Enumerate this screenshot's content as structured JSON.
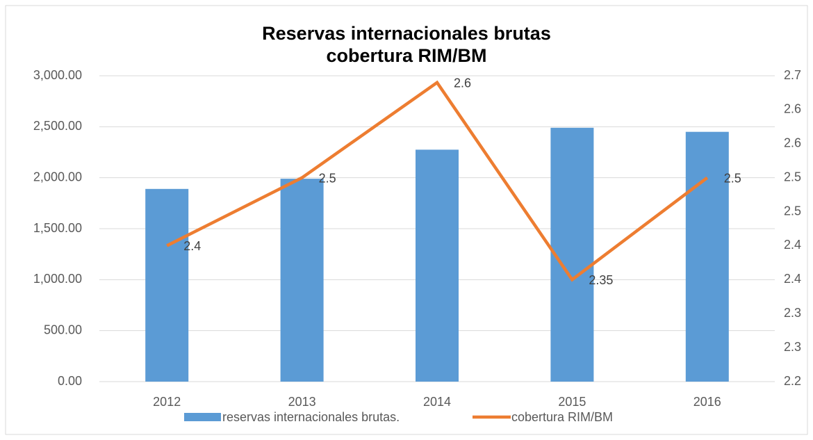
{
  "chart_data": {
    "type": "bar_line",
    "title": [
      "Reservas internacionales brutas",
      "cobertura  RIM/BM"
    ],
    "categories": [
      "2012",
      "2013",
      "2014",
      "2015",
      "2016"
    ],
    "series": [
      {
        "name": "reservas internacionales brutas.",
        "color": "#5b9bd5",
        "type": "bar",
        "values": [
          1890,
          1990,
          2275,
          2490,
          2450
        ]
      },
      {
        "name": "cobertura  RIM/BM",
        "color": "#ed7d31",
        "type": "line",
        "axis": "y2",
        "values": [
          2.4,
          2.5,
          2.64,
          2.35,
          2.5
        ],
        "value_labels": [
          "2.4",
          "2.5",
          "2.6",
          "2.35",
          "2.5"
        ]
      }
    ],
    "ylim": [
      0,
      3000
    ],
    "yticks": [
      {
        "value": 0,
        "label": "0.00"
      },
      {
        "value": 500,
        "label": "500.00"
      },
      {
        "value": 1000,
        "label": "1,000.00"
      },
      {
        "value": 1500,
        "label": "1,500.00"
      },
      {
        "value": 2000,
        "label": "2,000.00"
      },
      {
        "value": 2500,
        "label": "2,500.00"
      },
      {
        "value": 3000,
        "label": "3,000.00"
      }
    ],
    "y2lim": [
      2.2,
      2.65
    ],
    "y2ticks": [
      2.2,
      {
        "value": 2.25,
        "label": "2.3"
      },
      2.3,
      {
        "value": 2.35,
        "label": "2.4"
      },
      2.4,
      {
        "value": 2.45,
        "label": "2.5"
      },
      2.5,
      {
        "value": 2.55,
        "label": "2.6"
      },
      2.6,
      {
        "value": 2.65,
        "label": "2.7"
      }
    ],
    "grid": true,
    "legend": "bottom"
  }
}
